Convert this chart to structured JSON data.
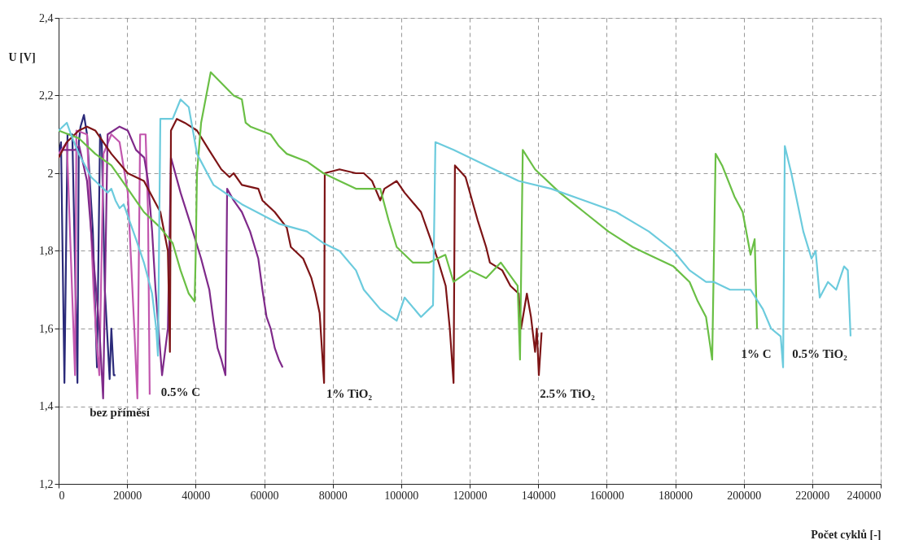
{
  "chart_data": {
    "type": "line",
    "xlabel": "Počet cyklů [-]",
    "ylabel": "U [V]",
    "xlim": [
      0,
      240000
    ],
    "xticks": [
      0,
      20000,
      40000,
      60000,
      80000,
      100000,
      120000,
      140000,
      160000,
      180000,
      200000,
      220000,
      240000
    ],
    "ylim": [
      1.2,
      2.4
    ],
    "yticks": [
      {
        "value": 1.2,
        "label": "1,2"
      },
      {
        "value": 1.4,
        "label": "1,4"
      },
      {
        "value": 1.6,
        "label": "1,6"
      },
      {
        "value": 1.8,
        "label": "1,8"
      },
      2,
      {
        "value": 2.2,
        "label": "2,2"
      },
      {
        "value": 2.4,
        "label": "2,4"
      }
    ],
    "grid": true,
    "line_style": "solid",
    "marker": "none",
    "series": [
      {
        "color": "#2b2a7a",
        "x": [
          0,
          700,
          1700,
          2600,
          4000,
          5500,
          5900,
          6400,
          7400,
          8300,
          10000,
          11200,
          12100,
          12600,
          13500,
          14900,
          15400,
          16100,
          16600
        ],
        "values": [
          2.05,
          2.08,
          1.46,
          2.1,
          2.1,
          1.46,
          2.08,
          2.12,
          2.15,
          2.1,
          1.85,
          1.5,
          2.1,
          2.08,
          1.7,
          1.47,
          1.6,
          1.48,
          1.48
        ]
      },
      {
        "color": "#c257ae",
        "x": [
          0,
          2400,
          4800,
          5200,
          8300,
          10200,
          11200,
          11900,
          13100,
          15400,
          17800,
          20200,
          22100,
          23000,
          23800,
          25400,
          26100,
          26600
        ],
        "values": [
          2.05,
          2.08,
          1.48,
          2.11,
          2.1,
          1.7,
          1.55,
          1.48,
          2.05,
          2.1,
          2.08,
          1.95,
          1.6,
          1.42,
          2.1,
          2.1,
          1.9,
          1.43
        ]
      },
      {
        "color": "#7f2a8a",
        "x": [
          1200,
          4800,
          6000,
          8300,
          9500,
          11900,
          13000,
          14300,
          17800,
          20200,
          22600,
          25000,
          26100,
          27300,
          28300,
          30200,
          31900,
          32800,
          35600,
          39200,
          41600,
          44000,
          45200,
          46400,
          47500,
          48700,
          49200,
          51100,
          53500,
          55900,
          58300,
          59500,
          60700,
          61900,
          63100,
          64300,
          65400
        ],
        "values": [
          2.06,
          2.06,
          2.07,
          1.98,
          1.85,
          1.6,
          1.42,
          2.1,
          2.12,
          2.11,
          2.06,
          2.04,
          1.98,
          1.85,
          1.7,
          1.48,
          1.6,
          2.04,
          1.95,
          1.85,
          1.78,
          1.7,
          1.62,
          1.55,
          1.52,
          1.48,
          1.96,
          1.93,
          1.9,
          1.85,
          1.78,
          1.7,
          1.63,
          1.6,
          1.55,
          1.52,
          1.5
        ]
      },
      {
        "color": "#7d1416",
        "x": [
          0,
          2400,
          5900,
          8300,
          10700,
          15400,
          20200,
          24900,
          29700,
          31900,
          32500,
          32800,
          34500,
          36800,
          40400,
          43900,
          47500,
          49900,
          51100,
          53500,
          58300,
          59500,
          63100,
          66600,
          67800,
          71400,
          73800,
          75000,
          76200,
          77500,
          77700,
          82000,
          86800,
          89100,
          91500,
          93900,
          95100,
          98700,
          101000,
          105800,
          108200,
          110600,
          113000,
          114200,
          115300,
          115700,
          118800,
          122300,
          124800,
          125900,
          129500,
          131900,
          134300,
          135000,
          136700,
          137900,
          139100,
          139600,
          140200,
          141000
        ],
        "values": [
          2.04,
          2.08,
          2.11,
          2.12,
          2.11,
          2.05,
          2.0,
          1.98,
          1.9,
          1.8,
          1.54,
          2.11,
          2.14,
          2.13,
          2.11,
          2.06,
          2.01,
          1.99,
          2.0,
          1.97,
          1.96,
          1.93,
          1.9,
          1.86,
          1.81,
          1.78,
          1.73,
          1.69,
          1.64,
          1.46,
          2.0,
          2.01,
          2.0,
          2.0,
          1.98,
          1.93,
          1.96,
          1.98,
          1.95,
          1.9,
          1.84,
          1.78,
          1.71,
          1.6,
          1.46,
          2.02,
          1.99,
          1.88,
          1.81,
          1.77,
          1.75,
          1.71,
          1.69,
          1.6,
          1.69,
          1.63,
          1.54,
          1.6,
          1.48,
          1.59
        ]
      },
      {
        "color": "#6abf45",
        "x": [
          0,
          5900,
          10700,
          15400,
          20200,
          24900,
          29700,
          33300,
          35600,
          38000,
          39700,
          40000,
          40400,
          41600,
          44400,
          51100,
          53500,
          54600,
          56000,
          61900,
          64300,
          66600,
          72500,
          77300,
          82000,
          86800,
          93900,
          96300,
          98700,
          103400,
          108200,
          112900,
          115300,
          120100,
          124800,
          129100,
          134000,
          134700,
          135500,
          139100,
          146300,
          153400,
          160500,
          167600,
          172300,
          179500,
          184200,
          186600,
          189000,
          190800,
          191800,
          193700,
          197300,
          199700,
          202000,
          203200,
          203900
        ],
        "values": [
          2.11,
          2.09,
          2.05,
          2.02,
          1.96,
          1.9,
          1.86,
          1.82,
          1.75,
          1.69,
          1.67,
          1.78,
          2.0,
          2.13,
          2.26,
          2.2,
          2.19,
          2.13,
          2.12,
          2.1,
          2.07,
          2.05,
          2.03,
          2.0,
          1.98,
          1.96,
          1.96,
          1.88,
          1.81,
          1.77,
          1.77,
          1.79,
          1.72,
          1.75,
          1.73,
          1.77,
          1.71,
          1.52,
          2.06,
          2.01,
          1.95,
          1.9,
          1.85,
          1.81,
          1.79,
          1.76,
          1.72,
          1.67,
          1.63,
          1.52,
          2.05,
          2.02,
          1.94,
          1.9,
          1.79,
          1.83,
          1.6
        ]
      },
      {
        "color": "#6ccbdd",
        "x": [
          0,
          2400,
          3600,
          5900,
          9500,
          11900,
          14300,
          15400,
          16600,
          17800,
          19000,
          20200,
          22600,
          24900,
          27300,
          28500,
          29000,
          29700,
          33300,
          35600,
          38000,
          40400,
          45200,
          53500,
          64300,
          72500,
          77300,
          82000,
          86800,
          89100,
          93900,
          98700,
          101000,
          105800,
          109300,
          110000,
          115300,
          124800,
          134300,
          143800,
          153400,
          162800,
          172300,
          179500,
          184200,
          189000,
          191300,
          196000,
          202000,
          205600,
          208000,
          210800,
          211500,
          212000,
          213900,
          217400,
          219800,
          221000,
          222200,
          224600,
          227000,
          229300,
          230400,
          231200
        ],
        "values": [
          2.11,
          2.13,
          2.1,
          2.05,
          1.99,
          1.97,
          1.95,
          1.96,
          1.93,
          1.91,
          1.92,
          1.89,
          1.83,
          1.77,
          1.69,
          1.6,
          1.53,
          2.14,
          2.14,
          2.19,
          2.17,
          2.05,
          1.97,
          1.92,
          1.87,
          1.85,
          1.82,
          1.8,
          1.75,
          1.7,
          1.65,
          1.62,
          1.68,
          1.63,
          1.66,
          2.08,
          2.06,
          2.02,
          1.98,
          1.96,
          1.93,
          1.9,
          1.85,
          1.8,
          1.75,
          1.72,
          1.72,
          1.7,
          1.7,
          1.65,
          1.6,
          1.58,
          1.5,
          2.07,
          2.0,
          1.85,
          1.78,
          1.8,
          1.68,
          1.72,
          1.7,
          1.76,
          1.75,
          1.58
        ]
      }
    ],
    "annotations": [
      "bez příměsí",
      "0.5% C",
      "1% TiO₂",
      "2.5% TiO₂",
      "1% C",
      "0.5% TiO₂"
    ]
  }
}
